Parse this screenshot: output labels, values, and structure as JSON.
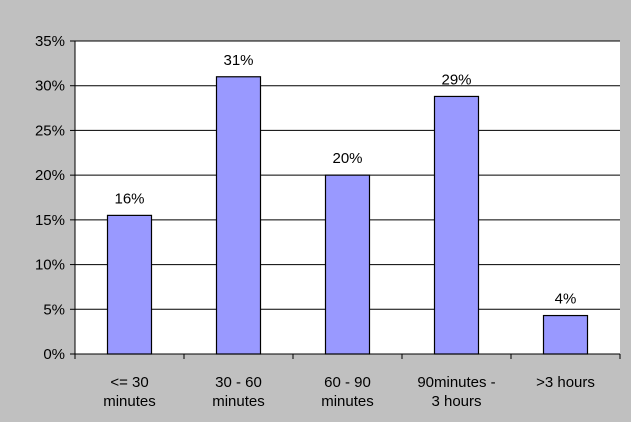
{
  "chart_data": {
    "type": "bar",
    "title": "",
    "xlabel": "",
    "ylabel": "",
    "categories": [
      [
        "<= 30",
        "minutes"
      ],
      [
        "30 - 60",
        "minutes"
      ],
      [
        "60 - 90",
        "minutes"
      ],
      [
        "90minutes -",
        "3 hours"
      ],
      [
        ">3 hours"
      ]
    ],
    "values": [
      0.155,
      0.31,
      0.2,
      0.288,
      0.043
    ],
    "data_labels": [
      "16%",
      "31%",
      "20%",
      "29%",
      "4%"
    ],
    "ylim": [
      0,
      0.35
    ],
    "yticks": [
      0,
      0.05,
      0.1,
      0.15,
      0.2,
      0.25,
      0.3,
      0.35
    ],
    "ytick_labels": [
      "0%",
      "5%",
      "10%",
      "15%",
      "20%",
      "25%",
      "30%",
      "35%"
    ],
    "grid": true,
    "legend": "none",
    "colors": {
      "bar_fill": "#9999ff",
      "bar_stroke": "#000000",
      "plot_background": "#ffffff",
      "chart_background": "#c0c0c0",
      "gridline": "#000000"
    }
  }
}
